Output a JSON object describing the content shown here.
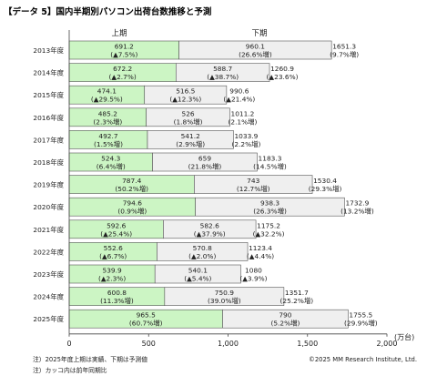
{
  "chart_data": {
    "type": "bar",
    "title": "【データ 5】国内半期別パソコン出荷台数推移と予測",
    "legend": {
      "first_half": "上期",
      "second_half": "下期"
    },
    "unit": "(万台)",
    "categories": [
      "2013年度",
      "2014年度",
      "2015年度",
      "2016年度",
      "2017年度",
      "2018年度",
      "2019年度",
      "2020年度",
      "2021年度",
      "2022年度",
      "2023年度",
      "2024年度",
      "2025年度"
    ],
    "series": [
      {
        "name": "上期",
        "color": "#ccf5c4",
        "values": [
          691.2,
          672.2,
          474.1,
          485.2,
          492.7,
          524.3,
          787.4,
          794.6,
          592.6,
          552.6,
          539.9,
          600.8,
          965.5
        ],
        "changes": [
          "(▲7.5%)",
          "(▲2.7%)",
          "(▲29.5%)",
          "(2.3%増)",
          "(1.5%増)",
          "(6.4%増)",
          "(50.2%増)",
          "(0.9%増)",
          "(▲25.4%)",
          "(▲6.7%)",
          "(▲2.3%)",
          "(11.3%増)",
          "(60.7%増)"
        ]
      },
      {
        "name": "下期",
        "color": "#efefef",
        "values": [
          960.1,
          588.7,
          516.5,
          526,
          541.2,
          659,
          743,
          938.3,
          582.6,
          570.8,
          540.1,
          750.9,
          790
        ],
        "changes": [
          "(26.6%増)",
          "(▲38.7%)",
          "(▲12.3%)",
          "(1.8%増)",
          "(2.9%増)",
          "(21.8%増)",
          "(12.7%増)",
          "(26.3%増)",
          "(▲37.9%)",
          "(▲2.0%)",
          "(▲5.4%)",
          "(39.0%増)",
          "(5.2%増)"
        ]
      }
    ],
    "totals": [
      1651.3,
      1260.9,
      990.6,
      1011.2,
      1033.9,
      1183.3,
      1530.4,
      1732.9,
      1175.2,
      1123.4,
      1080,
      1351.7,
      1755.5
    ],
    "total_changes": [
      "(9.7%増)",
      "(▲23.6%)",
      "(▲21.4%)",
      "(2.1%増)",
      "(2.2%増)",
      "(14.5%増)",
      "(29.3%増)",
      "(13.2%増)",
      "(▲32.2%)",
      "(▲4.4%)",
      "(▲3.9%)",
      "(25.2%増)",
      "(29.9%増)"
    ],
    "xlim": [
      0,
      2000
    ],
    "xticks": [
      "0",
      "500",
      "1,000",
      "1,500",
      "2,000"
    ],
    "notes": [
      "注）2025年度上期は実績、下期は予測値",
      "注）カッコ内は前年同期比"
    ],
    "copyright": "©2025 MM Research Institute, Ltd."
  }
}
